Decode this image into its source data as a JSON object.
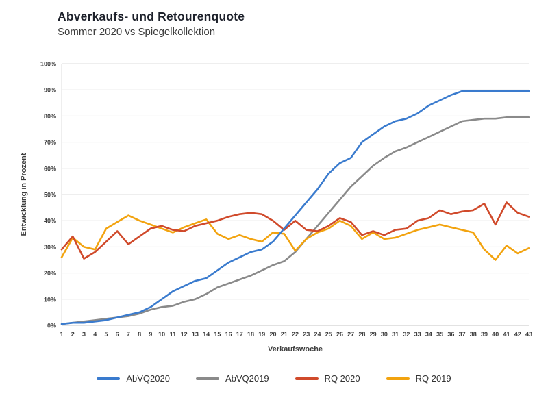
{
  "chart_data": {
    "type": "line",
    "title": "Abverkaufs- und Retourenquote",
    "subtitle": "Sommer 2020 vs Spiegelkollektion",
    "xlabel": "Verkaufswoche",
    "ylabel": "Entwicklung in Prozent",
    "ylim": [
      0,
      100
    ],
    "ytick_step": 10,
    "ytick_labels": [
      "0%",
      "10%",
      "20%",
      "30%",
      "40%",
      "50%",
      "60%",
      "70%",
      "80%",
      "90%",
      "100%"
    ],
    "grid": "horizontal",
    "legend_position": "bottom",
    "x": [
      1,
      2,
      3,
      4,
      5,
      6,
      7,
      8,
      9,
      10,
      11,
      12,
      13,
      14,
      15,
      16,
      17,
      18,
      19,
      20,
      21,
      22,
      23,
      24,
      25,
      26,
      27,
      28,
      29,
      30,
      31,
      32,
      33,
      34,
      35,
      36,
      37,
      38,
      39,
      40,
      41,
      42,
      43
    ],
    "series": [
      {
        "name": "AbVQ2020",
        "color": "#3a7bce",
        "values": [
          0.5,
          1,
          1,
          1.5,
          2,
          3,
          4,
          5,
          7,
          10,
          13,
          15,
          17,
          18,
          21,
          24,
          26,
          28,
          29,
          32,
          37,
          42,
          47,
          52,
          58,
          62,
          64,
          70,
          73,
          76,
          78,
          79,
          81,
          84,
          86,
          88,
          89.5,
          89.5,
          89.5,
          89.5,
          89.5,
          89.5,
          89.5
        ]
      },
      {
        "name": "AbVQ2019",
        "color": "#8a8a8a",
        "values": [
          0.5,
          1,
          1.5,
          2,
          2.5,
          3,
          3.5,
          4.5,
          6,
          7,
          7.5,
          9,
          10,
          12,
          14.5,
          16,
          17.5,
          19,
          21,
          23,
          24.5,
          28,
          33,
          38,
          43,
          48,
          53,
          57,
          61,
          64,
          66.5,
          68,
          70,
          72,
          74,
          76,
          78,
          78.5,
          79,
          79,
          79.5,
          79.5,
          79.5
        ]
      },
      {
        "name": "RQ 2020",
        "color": "#d04a2b",
        "values": [
          29,
          34,
          25.5,
          28,
          32,
          36,
          31,
          34,
          37,
          38,
          36.5,
          36,
          38,
          39,
          40,
          41.5,
          42.5,
          43,
          42.5,
          40,
          36.5,
          40,
          36.5,
          36,
          38,
          41,
          39.5,
          34.5,
          36,
          34.5,
          36.5,
          37,
          40,
          41,
          44,
          42.5,
          43.5,
          44,
          46.5,
          38.5,
          47,
          43,
          41.5
        ]
      },
      {
        "name": "RQ 2019",
        "color": "#f2a30f",
        "values": [
          26,
          33.5,
          30,
          29,
          37,
          39.5,
          42,
          40,
          38.5,
          37,
          35.5,
          37.5,
          39,
          40.5,
          35,
          33,
          34.5,
          33,
          32,
          35.5,
          35,
          28.5,
          33,
          35.5,
          37,
          40,
          38,
          33,
          35.5,
          33,
          33.5,
          35,
          36.5,
          37.5,
          38.5,
          37.5,
          36.5,
          35.5,
          29,
          25,
          30.5,
          27.5,
          29.5
        ]
      }
    ]
  }
}
